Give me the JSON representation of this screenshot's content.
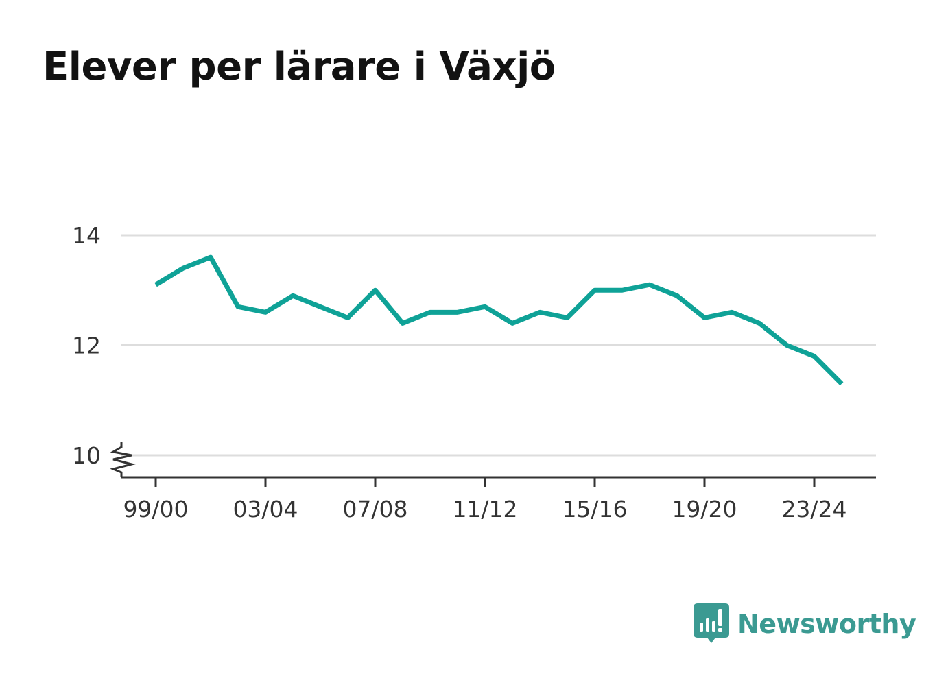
{
  "title": "Elever per lärare i Växjö",
  "brand": {
    "name": "Newsworthy",
    "icon": "newsworthy-bar-chart-icon",
    "color": "#3b9a92"
  },
  "colors": {
    "series": "#0fa297",
    "grid": "#dddddd",
    "axis": "#333333"
  },
  "chart_data": {
    "type": "line",
    "title": "Elever per lärare i Växjö",
    "xlabel": "",
    "ylabel": "",
    "x": [
      "99/00",
      "00/01",
      "01/02",
      "02/03",
      "03/04",
      "04/05",
      "05/06",
      "06/07",
      "07/08",
      "08/09",
      "09/10",
      "10/11",
      "11/12",
      "12/13",
      "13/14",
      "14/15",
      "15/16",
      "16/17",
      "17/18",
      "18/19",
      "19/20",
      "20/21",
      "21/22",
      "22/23",
      "23/24",
      "24/25"
    ],
    "x_tick_labels": [
      "99/00",
      "03/04",
      "07/08",
      "11/12",
      "15/16",
      "19/20",
      "23/24"
    ],
    "y_ticks": [
      10,
      12,
      14
    ],
    "ylim": [
      9.6,
      14.8
    ],
    "y_axis_break": true,
    "grid": true,
    "legend": "none",
    "series": [
      {
        "values": [
          13.1,
          13.4,
          13.6,
          12.7,
          12.6,
          12.9,
          12.7,
          12.5,
          13.0,
          12.4,
          12.6,
          12.6,
          12.7,
          12.4,
          12.6,
          12.5,
          13.0,
          13.0,
          13.1,
          12.9,
          12.5,
          12.6,
          12.4,
          12.0,
          11.8,
          11.3
        ]
      }
    ]
  }
}
